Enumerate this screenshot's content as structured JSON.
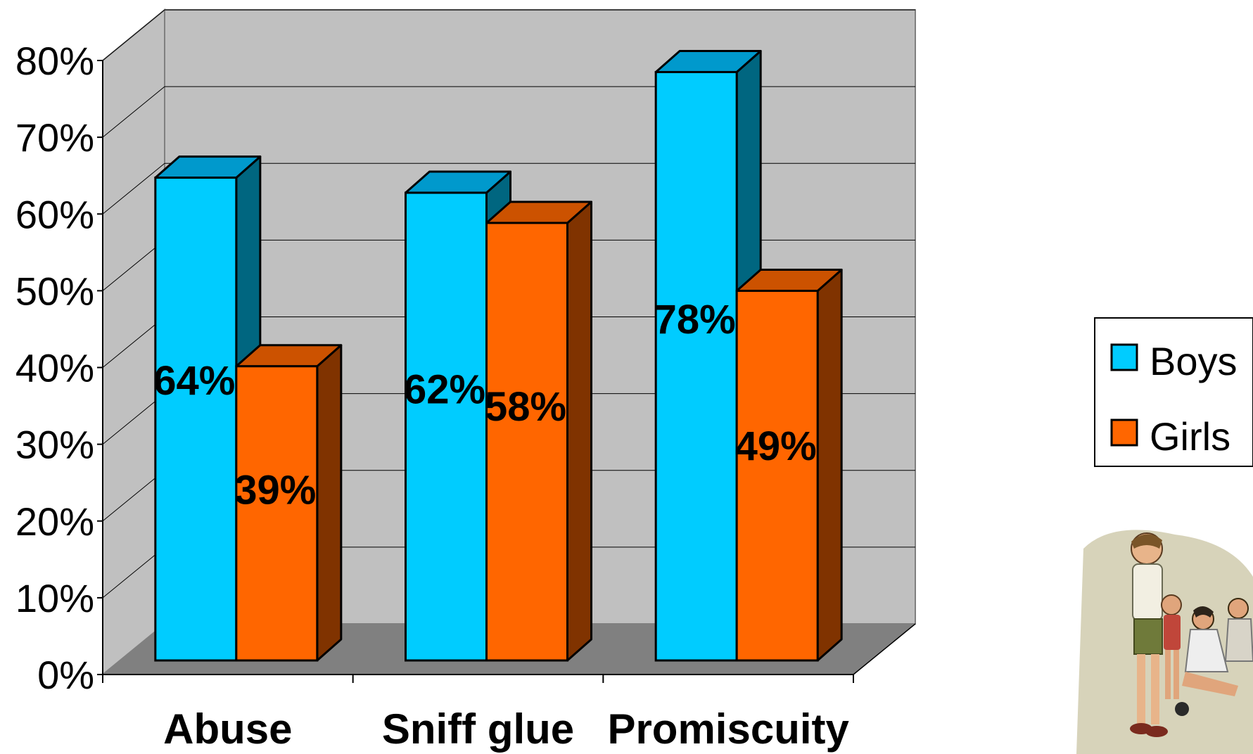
{
  "chart_data": {
    "type": "bar",
    "style": "3d-clustered-column",
    "categories": [
      "Abuse",
      "Sniff glue",
      "Promiscuity"
    ],
    "series": [
      {
        "name": "Boys",
        "values": [
          64,
          62,
          78
        ],
        "labels": [
          "64%",
          "62%",
          "78%"
        ]
      },
      {
        "name": "Girls",
        "values": [
          39,
          58,
          49
        ],
        "labels": [
          "39%",
          "58%",
          "49%"
        ]
      }
    ],
    "yticks": [
      "0%",
      "10%",
      "20%",
      "30%",
      "40%",
      "50%",
      "60%",
      "70%",
      "80%"
    ],
    "ylim": [
      0,
      80
    ],
    "grid": true,
    "legend_position": "right"
  },
  "colors": {
    "boys_front": "#00CCFF",
    "boys_top": "#0099CC",
    "boys_side": "#006680",
    "girls_front": "#FF6600",
    "girls_top": "#CC5200",
    "girls_side": "#803300",
    "wall": "#C0C0C0",
    "floor": "#808080"
  },
  "illustration": {
    "icon": "children-group-illustration"
  }
}
